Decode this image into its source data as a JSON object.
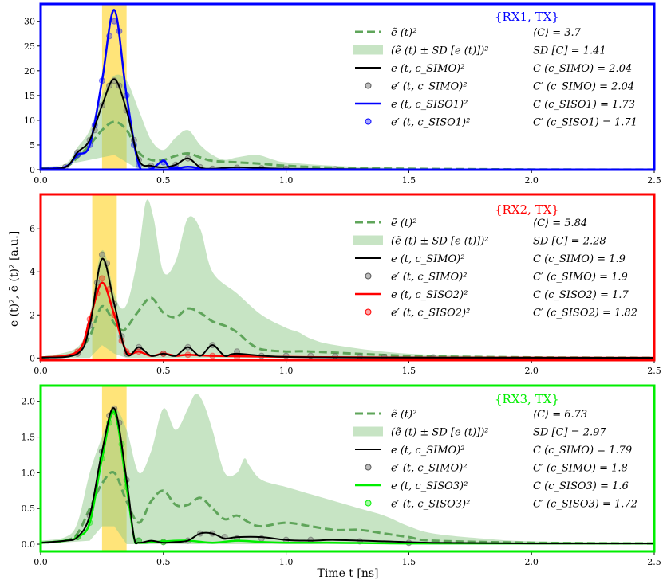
{
  "xlabel": "Time t [ns]",
  "ylabel": "e (t)², ẽ (t)² [a.u.]",
  "xlim": [
    0,
    2.5
  ],
  "xticks": [
    "0.0",
    "0.5",
    "1.0",
    "1.5",
    "2.0",
    "2.5"
  ],
  "legend_labels": [
    "ẽ (t)²",
    "(ẽ (t) ± SD [e (t)])²",
    "e (t, c_SIMO)²",
    "e′ (t, c_SIMO)²"
  ],
  "chart_data": [
    {
      "type": "line",
      "title": "{RX1, TX}",
      "color": "#0000ff",
      "ylim": [
        0,
        33.5
      ],
      "yticks": [
        "0",
        "5",
        "10",
        "15",
        "20",
        "25",
        "30"
      ],
      "highlight_window": [
        0.25,
        0.35
      ],
      "legend_siso_label": "e (t, c_SISO1)²",
      "legend_siso_prime_label": "e′ (t, c_SISO1)²",
      "stats": [
        "⟨C⟩ = 3.7",
        "SD [C] = 1.41",
        "C (c_SIMO) = 2.04",
        "C′ (c_SIMO) = 2.04",
        "C (c_SISO1) = 1.73",
        "C′ (c_SISO1) = 1.71"
      ],
      "mean": {
        "x": [
          0,
          0.1,
          0.15,
          0.2,
          0.25,
          0.3,
          0.35,
          0.4,
          0.45,
          0.5,
          0.55,
          0.6,
          0.65,
          0.7,
          0.8,
          0.9,
          1.0,
          1.2,
          1.5,
          2.0,
          2.5
        ],
        "y": [
          0.3,
          0.6,
          2.5,
          5,
          8,
          9.7,
          8,
          3.5,
          2,
          2,
          2.8,
          3.3,
          2.5,
          1.8,
          1.5,
          1.2,
          0.8,
          0.4,
          0.2,
          0.05,
          0.02
        ]
      },
      "band_upper": {
        "x": [
          0,
          0.1,
          0.15,
          0.2,
          0.25,
          0.3,
          0.35,
          0.4,
          0.45,
          0.5,
          0.55,
          0.6,
          0.65,
          0.7,
          0.75,
          0.8,
          0.88,
          0.95,
          1.0,
          1.2,
          1.5,
          2.0,
          2.5
        ],
        "y": [
          0.6,
          1.2,
          4.5,
          8,
          15,
          19,
          18,
          12,
          6,
          4,
          6.5,
          8,
          5,
          3,
          2,
          2.5,
          3,
          2,
          1.5,
          0.8,
          0.3,
          0.1,
          0.05
        ]
      },
      "band_lower": {
        "x": [
          0,
          0.2,
          0.25,
          0.3,
          0.35,
          0.4,
          2.5
        ],
        "y": [
          0,
          2,
          2.5,
          3,
          1.5,
          0,
          0
        ]
      },
      "simo": {
        "x": [
          0,
          0.1,
          0.15,
          0.2,
          0.25,
          0.3,
          0.35,
          0.4,
          0.45,
          0.5,
          0.55,
          0.6,
          0.65,
          0.7,
          0.8,
          1.0,
          1.5,
          2.5
        ],
        "y": [
          0.2,
          0.5,
          3.5,
          6,
          13,
          18.3,
          12,
          2,
          0.8,
          0.5,
          1,
          2.3,
          0.5,
          0.2,
          0.5,
          0.2,
          0.05,
          0.02
        ]
      },
      "siso": {
        "x": [
          0,
          0.1,
          0.15,
          0.2,
          0.25,
          0.3,
          0.35,
          0.4,
          0.45,
          0.5,
          0.53,
          0.6,
          0.65,
          0.7,
          1.0,
          1.5,
          2.5
        ],
        "y": [
          0.2,
          0.6,
          3,
          5,
          18,
          32.3,
          15,
          1,
          0.2,
          1.8,
          0.3,
          0.6,
          0.3,
          0.1,
          0.05,
          0.02,
          0.01
        ]
      },
      "simo_prime": {
        "x": [
          0.1,
          0.15,
          0.2,
          0.22,
          0.25,
          0.28,
          0.3,
          0.32,
          0.35,
          0.38,
          0.4,
          0.45,
          0.55,
          0.6,
          0.65,
          0.7,
          0.8,
          0.9,
          1.0,
          1.2
        ],
        "y": [
          0.5,
          3.5,
          6,
          8,
          13,
          17,
          18,
          17,
          12,
          6,
          2,
          0.8,
          1,
          2.3,
          0.5,
          0.2,
          0.4,
          0.3,
          0.2,
          0.1
        ]
      },
      "siso_prime": {
        "x": [
          0.15,
          0.2,
          0.22,
          0.25,
          0.28,
          0.3,
          0.32,
          0.35,
          0.38,
          0.4,
          0.45,
          0.5,
          0.55
        ],
        "y": [
          3,
          5,
          9,
          18,
          27,
          30,
          28,
          15,
          5,
          1,
          0.3,
          1.5,
          0.3
        ]
      }
    },
    {
      "type": "line",
      "title": "{RX2, TX}",
      "color": "#ff0000",
      "ylim": [
        -0.1,
        7.6
      ],
      "yticks": [
        "0",
        "2",
        "4",
        "6"
      ],
      "highlight_window": [
        0.21,
        0.31
      ],
      "legend_siso_label": "e (t, c_SISO2)²",
      "legend_siso_prime_label": "e′ (t, c_SISO2)²",
      "stats": [
        "⟨C⟩ = 5.84",
        "SD [C] = 2.28",
        "C (c_SIMO) = 1.9",
        "C′ (c_SIMO) = 1.9",
        "C (c_SISO2) = 1.7",
        "C′ (c_SISO2) = 1.82"
      ],
      "mean": {
        "x": [
          0,
          0.1,
          0.15,
          0.2,
          0.25,
          0.3,
          0.33,
          0.35,
          0.4,
          0.45,
          0.5,
          0.55,
          0.6,
          0.65,
          0.7,
          0.75,
          0.8,
          0.85,
          0.9,
          1.0,
          1.1,
          1.5,
          2.0,
          2.5
        ],
        "y": [
          0.02,
          0.1,
          0.3,
          1,
          2.4,
          1.6,
          1.3,
          1.4,
          2.2,
          2.8,
          2.1,
          1.9,
          2.3,
          2.1,
          1.7,
          1.5,
          1.2,
          0.7,
          0.4,
          0.3,
          0.3,
          0.1,
          0.03,
          0.01
        ]
      },
      "band_upper": {
        "x": [
          0,
          0.15,
          0.2,
          0.25,
          0.3,
          0.33,
          0.36,
          0.4,
          0.43,
          0.46,
          0.5,
          0.55,
          0.6,
          0.65,
          0.7,
          0.8,
          0.9,
          1.0,
          1.05,
          1.1,
          1.2,
          1.5,
          2.0,
          2.5
        ],
        "y": [
          0.05,
          0.5,
          2,
          5,
          3,
          2.3,
          2.8,
          5,
          7.3,
          6.5,
          4,
          4.5,
          6.5,
          6,
          4,
          3,
          2,
          1.4,
          1.2,
          0.9,
          0.6,
          0.2,
          0.05,
          0.02
        ]
      },
      "band_lower": {
        "x": [
          0,
          0.2,
          0.25,
          0.3,
          0.35,
          2.5
        ],
        "y": [
          0,
          0,
          0.6,
          0.2,
          0,
          0
        ]
      },
      "simo": {
        "x": [
          0,
          0.15,
          0.2,
          0.25,
          0.3,
          0.35,
          0.4,
          0.45,
          0.5,
          0.55,
          0.6,
          0.65,
          0.7,
          0.75,
          0.8,
          1.0,
          1.5,
          2.5
        ],
        "y": [
          0.02,
          0.2,
          1.5,
          4.6,
          2.5,
          0.2,
          0.5,
          0.1,
          0.2,
          0.1,
          0.5,
          0.1,
          0.6,
          0.1,
          0.2,
          0.05,
          0.02,
          0.01
        ]
      },
      "siso": {
        "x": [
          0,
          0.15,
          0.2,
          0.25,
          0.3,
          0.35,
          0.4,
          0.45,
          0.5,
          0.55,
          0.6,
          0.7,
          1.0,
          1.5,
          2.5
        ],
        "y": [
          0.02,
          0.3,
          1.8,
          3.5,
          2,
          0.3,
          0.3,
          0.1,
          0.2,
          0.1,
          0.15,
          0.1,
          0.05,
          0.02,
          0.01
        ]
      },
      "simo_prime": {
        "x": [
          0.15,
          0.2,
          0.23,
          0.25,
          0.27,
          0.3,
          0.33,
          0.35,
          0.4,
          0.5,
          0.6,
          0.7,
          0.8,
          0.9,
          1.0,
          1.1,
          1.2,
          1.3,
          1.4,
          1.6
        ],
        "y": [
          0.2,
          1.5,
          3.5,
          4.8,
          4.4,
          2.5,
          1,
          0.2,
          0.5,
          0.2,
          0.5,
          0.6,
          0.3,
          0.1,
          0.1,
          0.1,
          0.08,
          0.06,
          0.05,
          0.03
        ]
      },
      "siso_prime": {
        "x": [
          0.15,
          0.2,
          0.23,
          0.25,
          0.28,
          0.3,
          0.33,
          0.35,
          0.4,
          0.5,
          0.6,
          0.7,
          0.8
        ],
        "y": [
          0.3,
          1.8,
          3,
          3.7,
          3.2,
          2,
          0.8,
          0.3,
          0.3,
          0.2,
          0.15,
          0.1,
          0.05
        ]
      }
    },
    {
      "type": "line",
      "title": "{RX3, TX}",
      "color": "#00ee00",
      "ylim": [
        -0.1,
        2.22
      ],
      "yticks": [
        "0.0",
        "0.5",
        "1.0",
        "1.5",
        "2.0"
      ],
      "highlight_window": [
        0.25,
        0.35
      ],
      "legend_siso_label": "e (t, c_SISO3)²",
      "legend_siso_prime_label": "e′ (t, c_SISO3)²",
      "stats": [
        "⟨C⟩ = 6.73",
        "SD [C] = 2.97",
        "C (c_SIMO) = 1.79",
        "C′ (c_SIMO) = 1.8",
        "C (c_SISO3) = 1.6",
        "C′ (c_SISO3) = 1.72"
      ],
      "mean": {
        "x": [
          0,
          0.1,
          0.15,
          0.2,
          0.25,
          0.3,
          0.35,
          0.4,
          0.45,
          0.5,
          0.55,
          0.6,
          0.65,
          0.7,
          0.75,
          0.8,
          0.85,
          0.9,
          1.0,
          1.1,
          1.2,
          1.3,
          1.4,
          1.5,
          1.6,
          2.0,
          2.5
        ],
        "y": [
          0.02,
          0.05,
          0.15,
          0.5,
          0.85,
          1.0,
          0.6,
          0.3,
          0.6,
          0.75,
          0.55,
          0.55,
          0.65,
          0.5,
          0.35,
          0.4,
          0.3,
          0.25,
          0.3,
          0.25,
          0.2,
          0.2,
          0.15,
          0.1,
          0.05,
          0.02,
          0.01
        ]
      },
      "band_upper": {
        "x": [
          0,
          0.1,
          0.15,
          0.2,
          0.25,
          0.3,
          0.35,
          0.4,
          0.45,
          0.5,
          0.55,
          0.6,
          0.63,
          0.66,
          0.7,
          0.75,
          0.8,
          0.83,
          0.85,
          0.9,
          1.0,
          1.1,
          1.2,
          1.3,
          1.4,
          1.5,
          1.6,
          1.8,
          2.0,
          2.5
        ],
        "y": [
          0.05,
          0.1,
          0.3,
          1,
          1.5,
          1.9,
          1.6,
          1,
          1.3,
          1.9,
          1.6,
          1.9,
          2.1,
          2.0,
          1.6,
          1.0,
          1.0,
          1.2,
          1.1,
          0.9,
          0.8,
          0.7,
          0.6,
          0.5,
          0.4,
          0.25,
          0.15,
          0.08,
          0.04,
          0.02
        ]
      },
      "band_lower": {
        "x": [
          0,
          0.2,
          0.25,
          0.3,
          0.35,
          2.5
        ],
        "y": [
          0,
          0.05,
          0.25,
          0.25,
          0,
          0
        ]
      },
      "simo": {
        "x": [
          0,
          0.1,
          0.15,
          0.2,
          0.25,
          0.3,
          0.35,
          0.38,
          0.4,
          0.45,
          0.5,
          0.55,
          0.6,
          0.65,
          0.7,
          0.75,
          0.8,
          0.9,
          1.0,
          1.1,
          1.2,
          1.4,
          1.6,
          2.0,
          2.5
        ],
        "y": [
          0.02,
          0.05,
          0.1,
          0.4,
          1.3,
          1.9,
          0.9,
          0.1,
          0.02,
          0.05,
          0.02,
          0.03,
          0.05,
          0.15,
          0.15,
          0.08,
          0.1,
          0.1,
          0.06,
          0.05,
          0.06,
          0.04,
          0.02,
          0.01,
          0.01
        ]
      },
      "siso": {
        "x": [
          0,
          0.1,
          0.15,
          0.2,
          0.25,
          0.3,
          0.35,
          0.38,
          0.4,
          0.5,
          0.6,
          0.7,
          0.8,
          0.9,
          1.0,
          1.2,
          1.5,
          2.0,
          2.5
        ],
        "y": [
          0.02,
          0.05,
          0.1,
          0.3,
          1.2,
          1.85,
          0.8,
          0.1,
          0.02,
          0.04,
          0.05,
          0.02,
          0.05,
          0.03,
          0.02,
          0.02,
          0.01,
          0.01,
          0.01
        ]
      },
      "simo_prime": {
        "x": [
          0.15,
          0.2,
          0.25,
          0.28,
          0.3,
          0.32,
          0.35,
          0.4,
          0.5,
          0.6,
          0.65,
          0.7,
          0.75,
          0.8,
          0.9,
          1.0,
          1.1,
          1.3,
          1.5
        ],
        "y": [
          0.1,
          0.4,
          1.3,
          1.8,
          1.9,
          1.7,
          0.9,
          0.05,
          0.03,
          0.05,
          0.15,
          0.15,
          0.1,
          0.08,
          0.08,
          0.06,
          0.06,
          0.04,
          0.02
        ]
      },
      "siso_prime": {
        "x": [
          0.15,
          0.2,
          0.25,
          0.28,
          0.3,
          0.33,
          0.35,
          0.4,
          0.5
        ],
        "y": [
          0.1,
          0.3,
          1.2,
          1.7,
          1.85,
          1.4,
          0.8,
          0.05,
          0.03
        ]
      }
    }
  ]
}
